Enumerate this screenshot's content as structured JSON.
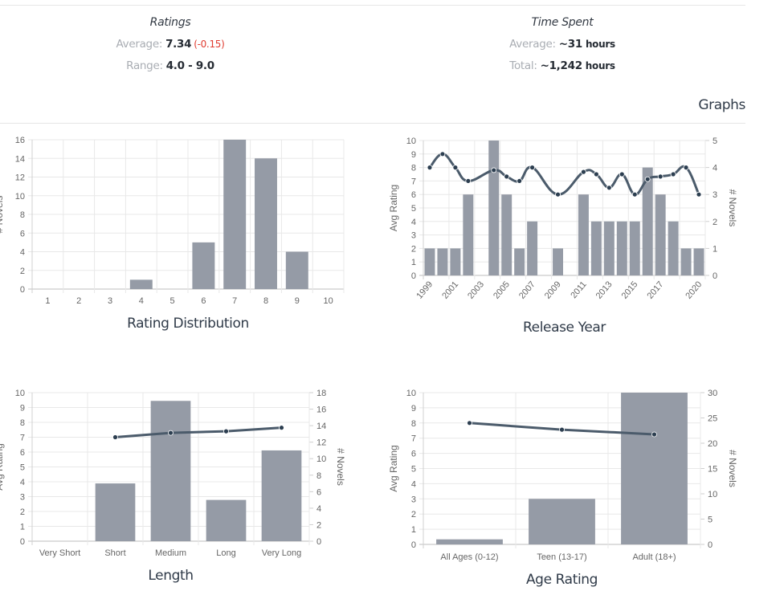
{
  "summary": {
    "ratings": {
      "title": "Ratings",
      "average_label": "Average:",
      "average_value": "7.34",
      "average_delta": "(-0.15)",
      "range_label": "Range:",
      "range_value": "4.0 - 9.0"
    },
    "time_spent": {
      "title": "Time Spent",
      "average_label": "Average:",
      "average_value": "~31",
      "average_unit": "hours",
      "total_label": "Total:",
      "total_value": "~1,242",
      "total_unit": "hours"
    }
  },
  "graphs_heading": "Graphs",
  "colors": {
    "bar": "#959ba6",
    "line": "#4b5b6b",
    "point": "#2c3e50",
    "grid": "#e8e8e8",
    "delta_negative": "#e03c31"
  },
  "chart_data": [
    {
      "type": "bar",
      "title": "Rating Distribution",
      "ylabel": "# Novels",
      "categories": [
        "1",
        "2",
        "3",
        "4",
        "5",
        "6",
        "7",
        "8",
        "9",
        "10"
      ],
      "values": [
        0,
        0,
        0,
        1,
        0,
        5,
        16,
        14,
        4,
        0
      ],
      "ylim": [
        0,
        16
      ],
      "yticks": [
        0,
        2,
        4,
        6,
        8,
        10,
        12,
        14,
        16
      ],
      "grid": true
    },
    {
      "type": "bar+line",
      "title": "Release Year",
      "ylabel": "Avg Rating",
      "y2label": "# Novels",
      "categories": [
        "1999",
        "2000",
        "2001",
        "2002",
        "2003",
        "2004",
        "2005",
        "2006",
        "2007",
        "2008",
        "2009",
        "2010",
        "2011",
        "2012",
        "2013",
        "2014",
        "2015",
        "2016",
        "2017",
        "2018",
        "2019",
        "2020"
      ],
      "xtick_labels": [
        "1999",
        "2001",
        "2003",
        "2005",
        "2007",
        "2009",
        "2011",
        "2013",
        "2015",
        "2017",
        "2020"
      ],
      "series": [
        {
          "name": "# Novels",
          "axis": "right",
          "kind": "bar",
          "values": [
            1,
            1,
            1,
            3,
            0,
            5,
            3,
            1,
            2,
            0,
            1,
            0,
            3,
            2,
            2,
            2,
            2,
            4,
            3,
            2,
            1,
            1
          ]
        },
        {
          "name": "Avg Rating",
          "axis": "left",
          "kind": "line",
          "values": [
            8,
            9,
            8,
            7,
            null,
            7.8,
            7.33,
            7,
            8,
            null,
            6,
            null,
            7.67,
            7.5,
            6.5,
            7.5,
            6,
            7.13,
            7.33,
            7.5,
            8,
            6
          ]
        }
      ],
      "ylim": [
        0,
        10
      ],
      "yticks": [
        0,
        1,
        2,
        3,
        4,
        5,
        6,
        7,
        8,
        9,
        10
      ],
      "y2lim": [
        0,
        5
      ],
      "y2ticks": [
        0,
        1,
        2,
        3,
        4,
        5
      ],
      "grid": true
    },
    {
      "type": "bar+line",
      "title": "Length",
      "ylabel": "Avg Rating",
      "y2label": "# Novels",
      "categories": [
        "Very Short",
        "Short",
        "Medium",
        "Long",
        "Very Long"
      ],
      "series": [
        {
          "name": "# Novels",
          "axis": "right",
          "kind": "bar",
          "values": [
            0,
            7,
            17,
            5,
            11
          ]
        },
        {
          "name": "Avg Rating",
          "axis": "left",
          "kind": "line",
          "values": [
            null,
            7.0,
            7.29,
            7.4,
            7.64
          ]
        }
      ],
      "ylim": [
        0,
        10
      ],
      "yticks": [
        0,
        1,
        2,
        3,
        4,
        5,
        6,
        7,
        8,
        9,
        10
      ],
      "y2lim": [
        0,
        18
      ],
      "y2ticks": [
        0,
        2,
        4,
        6,
        8,
        10,
        12,
        14,
        16,
        18
      ],
      "grid": true
    },
    {
      "type": "bar+line",
      "title": "Age Rating",
      "ylabel": "Avg Rating",
      "y2label": "# Novels",
      "categories": [
        "All Ages (0-12)",
        "Teen (13-17)",
        "Adult (18+)"
      ],
      "series": [
        {
          "name": "# Novels",
          "axis": "right",
          "kind": "bar",
          "values": [
            1,
            9,
            30
          ]
        },
        {
          "name": "Avg Rating",
          "axis": "left",
          "kind": "line",
          "values": [
            8.0,
            7.56,
            7.25
          ]
        }
      ],
      "ylim": [
        0,
        10
      ],
      "yticks": [
        0,
        1,
        2,
        3,
        4,
        5,
        6,
        7,
        8,
        9,
        10
      ],
      "y2lim": [
        0,
        30
      ],
      "y2ticks": [
        0,
        5,
        10,
        15,
        20,
        25,
        30
      ],
      "grid": true
    }
  ]
}
